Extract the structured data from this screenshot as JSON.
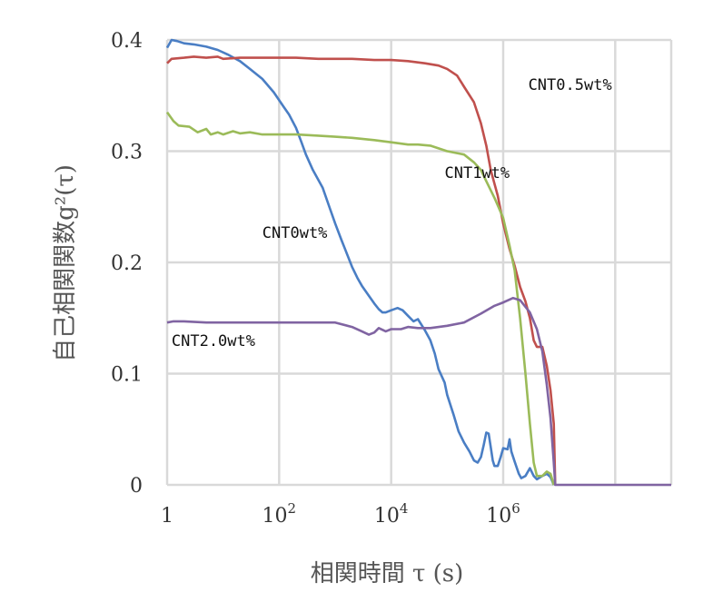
{
  "chart_data": {
    "type": "line",
    "xscale": "log",
    "xlim": [
      1,
      1000000000
    ],
    "ylim": [
      0,
      0.4
    ],
    "grid": true,
    "legend": "none",
    "xlabel": "相関時間 τ (s)",
    "ylabel": "自己相関関数g²(τ)",
    "xticks": [
      {
        "value": 1,
        "label": "1"
      },
      {
        "value": 100,
        "label": "10",
        "sup": "2"
      },
      {
        "value": 10000,
        "label": "10",
        "sup": "4"
      },
      {
        "value": 1000000,
        "label": "10",
        "sup": "6"
      }
    ],
    "yticks": [
      {
        "value": 0,
        "label": "0"
      },
      {
        "value": 0.1,
        "label": "0.1"
      },
      {
        "value": 0.2,
        "label": "0.2"
      },
      {
        "value": 0.3,
        "label": "0.3"
      },
      {
        "value": 0.4,
        "label": "0.4"
      }
    ],
    "series": [
      {
        "name": "CNT0wt%",
        "color": "#4a7ec4",
        "points": [
          [
            1,
            0.393
          ],
          [
            1.2,
            0.4
          ],
          [
            1.5,
            0.399
          ],
          [
            2,
            0.397
          ],
          [
            3,
            0.396
          ],
          [
            5,
            0.394
          ],
          [
            8,
            0.391
          ],
          [
            12,
            0.387
          ],
          [
            20,
            0.381
          ],
          [
            30,
            0.374
          ],
          [
            50,
            0.365
          ],
          [
            80,
            0.353
          ],
          [
            120,
            0.34
          ],
          [
            150,
            0.333
          ],
          [
            200,
            0.321
          ],
          [
            250,
            0.308
          ],
          [
            300,
            0.297
          ],
          [
            400,
            0.283
          ],
          [
            600,
            0.267
          ],
          [
            800,
            0.249
          ],
          [
            1000,
            0.235
          ],
          [
            1300,
            0.22
          ],
          [
            1500,
            0.212
          ],
          [
            2000,
            0.196
          ],
          [
            2500,
            0.186
          ],
          [
            3000,
            0.179
          ],
          [
            4000,
            0.17
          ],
          [
            5000,
            0.163
          ],
          [
            6000,
            0.158
          ],
          [
            7000,
            0.155
          ],
          [
            8000,
            0.155
          ],
          [
            10000,
            0.157
          ],
          [
            13000,
            0.159
          ],
          [
            16000,
            0.157
          ],
          [
            20000,
            0.152
          ],
          [
            25000,
            0.147
          ],
          [
            30000,
            0.149
          ],
          [
            40000,
            0.139
          ],
          [
            50000,
            0.13
          ],
          [
            60000,
            0.118
          ],
          [
            70000,
            0.104
          ],
          [
            90000,
            0.092
          ],
          [
            100000,
            0.081
          ],
          [
            130000,
            0.063
          ],
          [
            160000,
            0.048
          ],
          [
            200000,
            0.038
          ],
          [
            250000,
            0.03
          ],
          [
            300000,
            0.022
          ],
          [
            350000,
            0.02
          ],
          [
            400000,
            0.025
          ],
          [
            450000,
            0.036
          ],
          [
            500000,
            0.047
          ],
          [
            550000,
            0.046
          ],
          [
            600000,
            0.034
          ],
          [
            650000,
            0.022
          ],
          [
            700000,
            0.017
          ],
          [
            800000,
            0.017
          ],
          [
            900000,
            0.025
          ],
          [
            1000000,
            0.033
          ],
          [
            1200000,
            0.032
          ],
          [
            1300000,
            0.041
          ],
          [
            1400000,
            0.03
          ],
          [
            1600000,
            0.021
          ],
          [
            1900000,
            0.01
          ],
          [
            2100000,
            0.006
          ],
          [
            2500000,
            0.008
          ],
          [
            3000000,
            0.015
          ],
          [
            3500000,
            0.008
          ],
          [
            4000000,
            0.005
          ],
          [
            5000000,
            0.008
          ],
          [
            6000000,
            0.01
          ],
          [
            7000000,
            0.007
          ],
          [
            8000000,
            0.0
          ]
        ]
      },
      {
        "name": "CNT0.5wt%",
        "color": "#c0504d",
        "points": [
          [
            1,
            0.379
          ],
          [
            1.2,
            0.383
          ],
          [
            2,
            0.384
          ],
          [
            3,
            0.385
          ],
          [
            5,
            0.384
          ],
          [
            8,
            0.385
          ],
          [
            10,
            0.383
          ],
          [
            20,
            0.384
          ],
          [
            50,
            0.384
          ],
          [
            100,
            0.384
          ],
          [
            200,
            0.384
          ],
          [
            500,
            0.383
          ],
          [
            1000,
            0.383
          ],
          [
            2000,
            0.383
          ],
          [
            5000,
            0.382
          ],
          [
            10000,
            0.382
          ],
          [
            20000,
            0.381
          ],
          [
            40000,
            0.379
          ],
          [
            70000,
            0.377
          ],
          [
            100000,
            0.374
          ],
          [
            150000,
            0.368
          ],
          [
            200000,
            0.358
          ],
          [
            300000,
            0.344
          ],
          [
            400000,
            0.325
          ],
          [
            500000,
            0.305
          ],
          [
            600000,
            0.283
          ],
          [
            800000,
            0.26
          ],
          [
            1000000,
            0.235
          ],
          [
            1300000,
            0.212
          ],
          [
            1600000,
            0.197
          ],
          [
            2000000,
            0.178
          ],
          [
            2500000,
            0.165
          ],
          [
            3000000,
            0.15
          ],
          [
            3500000,
            0.13
          ],
          [
            4000000,
            0.124
          ],
          [
            5000000,
            0.124
          ],
          [
            6000000,
            0.107
          ],
          [
            7000000,
            0.085
          ],
          [
            8000000,
            0.055
          ],
          [
            8500000,
            0.0
          ]
        ]
      },
      {
        "name": "CNT1wt%",
        "color": "#9bbb59",
        "points": [
          [
            1,
            0.335
          ],
          [
            1.3,
            0.327
          ],
          [
            1.6,
            0.323
          ],
          [
            2.5,
            0.322
          ],
          [
            3.5,
            0.317
          ],
          [
            5,
            0.32
          ],
          [
            6,
            0.315
          ],
          [
            8,
            0.317
          ],
          [
            10,
            0.315
          ],
          [
            15,
            0.318
          ],
          [
            20,
            0.316
          ],
          [
            30,
            0.317
          ],
          [
            50,
            0.315
          ],
          [
            100,
            0.315
          ],
          [
            200,
            0.315
          ],
          [
            500,
            0.314
          ],
          [
            1000,
            0.313
          ],
          [
            2000,
            0.312
          ],
          [
            5000,
            0.31
          ],
          [
            10000,
            0.308
          ],
          [
            20000,
            0.306
          ],
          [
            30000,
            0.306
          ],
          [
            50000,
            0.305
          ],
          [
            100000,
            0.3
          ],
          [
            200000,
            0.297
          ],
          [
            300000,
            0.29
          ],
          [
            400000,
            0.283
          ],
          [
            500000,
            0.273
          ],
          [
            700000,
            0.258
          ],
          [
            1000000,
            0.24
          ],
          [
            1300000,
            0.215
          ],
          [
            1600000,
            0.193
          ],
          [
            2000000,
            0.15
          ],
          [
            2500000,
            0.1
          ],
          [
            3000000,
            0.055
          ],
          [
            3500000,
            0.02
          ],
          [
            4000000,
            0.008
          ],
          [
            5000000,
            0.008
          ],
          [
            6000000,
            0.012
          ],
          [
            7000000,
            0.01
          ],
          [
            8000000,
            0.0
          ]
        ]
      },
      {
        "name": "CNT2.0wt%",
        "color": "#8064a2",
        "points": [
          [
            1,
            0.146
          ],
          [
            1.3,
            0.147
          ],
          [
            2,
            0.147
          ],
          [
            5,
            0.146
          ],
          [
            10,
            0.146
          ],
          [
            20,
            0.146
          ],
          [
            50,
            0.146
          ],
          [
            100,
            0.146
          ],
          [
            200,
            0.146
          ],
          [
            500,
            0.146
          ],
          [
            1000,
            0.146
          ],
          [
            2000,
            0.142
          ],
          [
            3000,
            0.138
          ],
          [
            4000,
            0.135
          ],
          [
            5000,
            0.137
          ],
          [
            6000,
            0.141
          ],
          [
            8000,
            0.138
          ],
          [
            10000,
            0.14
          ],
          [
            15000,
            0.14
          ],
          [
            20000,
            0.142
          ],
          [
            30000,
            0.141
          ],
          [
            50000,
            0.141
          ],
          [
            100000,
            0.143
          ],
          [
            200000,
            0.146
          ],
          [
            400000,
            0.154
          ],
          [
            700000,
            0.161
          ],
          [
            1000000,
            0.164
          ],
          [
            1500000,
            0.168
          ],
          [
            2000000,
            0.166
          ],
          [
            3000000,
            0.155
          ],
          [
            4000000,
            0.14
          ],
          [
            5000000,
            0.12
          ],
          [
            6000000,
            0.09
          ],
          [
            7000000,
            0.06
          ],
          [
            8000000,
            0.02
          ],
          [
            8500000,
            0.0
          ],
          [
            1000000000,
            0.0
          ]
        ]
      }
    ],
    "labels": [
      {
        "text": "CNT0.5wt%",
        "x": 2800000,
        "y": 0.355
      },
      {
        "text": "CNT1wt%",
        "x": 90000,
        "y": 0.276
      },
      {
        "text": "CNT0wt%",
        "x": 50,
        "y": 0.222
      },
      {
        "text": "CNT2.0wt%",
        "x": 1.2,
        "y": 0.125
      }
    ]
  }
}
